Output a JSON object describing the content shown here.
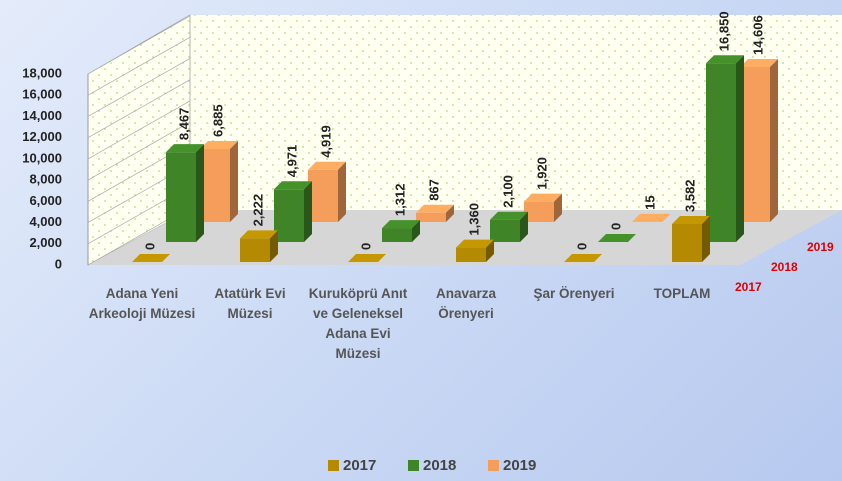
{
  "chart_data": {
    "type": "bar3d",
    "categories": [
      "Adana Yeni Arkeoloji Müzesi",
      "Atatürk Evi Müzesi",
      "Kuruköprü Anıt ve Geleneksel Adana Evi Müzesi",
      "Anavarza Örenyeri",
      "Şar Örenyeri",
      "TOPLAM"
    ],
    "series": [
      {
        "name": "2017",
        "color": "#b38a00",
        "values": [
          0,
          2222,
          0,
          1360,
          0,
          3582
        ],
        "value_labels": [
          "0",
          "2,222",
          "0",
          "1,360",
          "0",
          "3,582"
        ]
      },
      {
        "name": "2018",
        "color": "#3f8527",
        "values": [
          8467,
          4971,
          1312,
          2100,
          0,
          16850
        ],
        "value_labels": [
          "8,467",
          "4,971",
          "1,312",
          "2,100",
          "0",
          "16,850"
        ]
      },
      {
        "name": "2019",
        "color": "#f59d5a",
        "values": [
          6885,
          4919,
          867,
          1920,
          15,
          14606
        ],
        "value_labels": [
          "6,885",
          "4,919",
          "867",
          "1,920",
          "15",
          "14,606"
        ]
      }
    ],
    "ylim": [
      0,
      18000
    ],
    "yticks": [
      0,
      {
        "value": 2000,
        "label": "2,000"
      },
      {
        "value": 4000,
        "label": "4,000"
      },
      {
        "value": 6000,
        "label": "6,000"
      },
      {
        "value": 8000,
        "label": "8,000"
      },
      {
        "value": 10000,
        "label": "10,000"
      },
      {
        "value": 12000,
        "label": "12,000"
      },
      {
        "value": 14000,
        "label": "14,000"
      },
      {
        "value": 16000,
        "label": "16,000"
      },
      {
        "value": 18000,
        "label": "18,000"
      }
    ],
    "grid": true,
    "legend": "bottom"
  }
}
